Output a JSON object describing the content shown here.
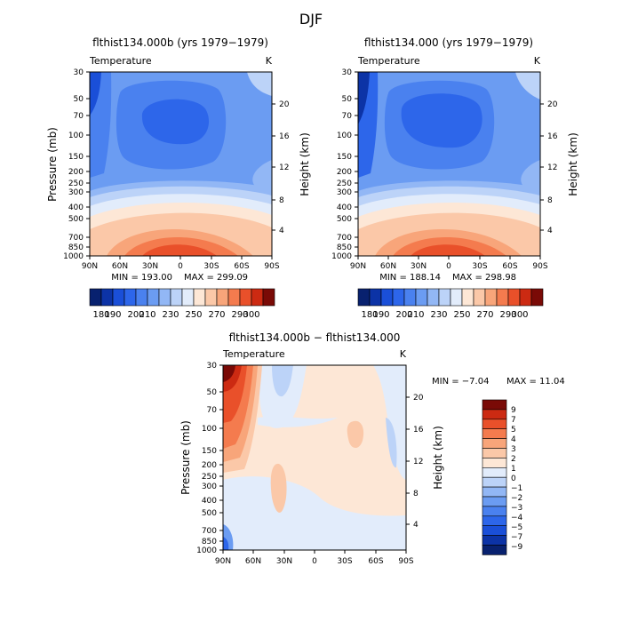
{
  "figure": {
    "title": "DJF"
  },
  "levels": {
    "abs": [
      180,
      190,
      200,
      210,
      220,
      230,
      240,
      250,
      260,
      270,
      280,
      290,
      300
    ],
    "abs_colors": [
      "#08216f",
      "#0c33a6",
      "#1a4fd8",
      "#2d66ea",
      "#4a81ef",
      "#6b9cf2",
      "#92b7f5",
      "#bcd3f8",
      "#e2ecfb",
      "#fde7d6",
      "#fbc8a8",
      "#f8a57a",
      "#f47b4e",
      "#e9502a",
      "#cc2a12",
      "#7a0a06"
    ],
    "abs_labels": [
      "180",
      "190",
      "200",
      "210",
      "230",
      "250",
      "270",
      "290",
      "300"
    ],
    "diff": [
      -9,
      -7,
      -5,
      -4,
      -3,
      -2,
      -1,
      0,
      1,
      2,
      3,
      4,
      5,
      7,
      9
    ],
    "diff_colors": [
      "#08216f",
      "#0c33a6",
      "#1a4fd8",
      "#2d66ea",
      "#4a81ef",
      "#6b9cf2",
      "#92b7f5",
      "#bcd3f8",
      "#e2ecfb",
      "#fde7d6",
      "#fbc8a8",
      "#f8a57a",
      "#f47b4e",
      "#e9502a",
      "#cc2a12",
      "#7a0a06"
    ],
    "diff_labels": [
      "9",
      "7",
      "5",
      "4",
      "3",
      "2",
      "1",
      "0",
      "−1",
      "−2",
      "−3",
      "−4",
      "−5",
      "−7",
      "−9"
    ]
  },
  "chart_data": [
    {
      "type": "heatmap",
      "title": "flthist134.000b (yrs 1979−1979)",
      "subtitle_left": "Temperature",
      "subtitle_right": "K",
      "ylabel": "Pressure (mb)",
      "ylabel_right": "Height (km)",
      "x_ticks": [
        "90N",
        "60N",
        "30N",
        "0",
        "30S",
        "60S",
        "90S"
      ],
      "y_ticks": [
        "30",
        "50",
        "70",
        "100",
        "150",
        "200",
        "250",
        "300",
        "400",
        "500",
        "700",
        "850",
        "1000"
      ],
      "y_right_ticks": [
        "20",
        "16",
        "12",
        "8",
        "4"
      ],
      "x_range": [
        90,
        -90
      ],
      "y_range": [
        30,
        1000
      ],
      "min": 193.0,
      "max": 299.09,
      "min_text": "MIN = 193.00",
      "max_text": "MAX = 299.09"
    },
    {
      "type": "heatmap",
      "title": "flthist134.000 (yrs 1979−1979)",
      "subtitle_left": "Temperature",
      "subtitle_right": "K",
      "ylabel": "",
      "ylabel_right": "Height (km)",
      "x_ticks": [
        "90N",
        "60N",
        "30N",
        "0",
        "30S",
        "60S",
        "90S"
      ],
      "y_ticks": [
        "30",
        "50",
        "70",
        "100",
        "150",
        "200",
        "250",
        "300",
        "400",
        "500",
        "700",
        "850",
        "1000"
      ],
      "y_right_ticks": [
        "20",
        "16",
        "12",
        "8",
        "4"
      ],
      "x_range": [
        90,
        -90
      ],
      "y_range": [
        30,
        1000
      ],
      "min": 188.14,
      "max": 298.98,
      "min_text": "MIN = 188.14",
      "max_text": "MAX = 298.98"
    },
    {
      "type": "heatmap",
      "title": "flthist134.000b − flthist134.000",
      "subtitle_left": "Temperature",
      "subtitle_right": "K",
      "ylabel": "Pressure (mb)",
      "ylabel_right": "Height (km)",
      "x_ticks": [
        "90N",
        "60N",
        "30N",
        "0",
        "30S",
        "60S",
        "90S"
      ],
      "y_ticks": [
        "30",
        "50",
        "70",
        "100",
        "150",
        "200",
        "250",
        "300",
        "400",
        "500",
        "700",
        "850",
        "1000"
      ],
      "y_right_ticks": [
        "20",
        "16",
        "12",
        "8",
        "4"
      ],
      "x_range": [
        90,
        -90
      ],
      "y_range": [
        30,
        1000
      ],
      "min": -7.04,
      "max": 11.04,
      "min_text": "MIN =   −7.04",
      "max_text": "MAX =   11.04"
    }
  ]
}
